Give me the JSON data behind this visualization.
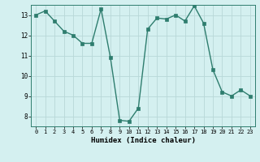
{
  "x": [
    0,
    1,
    2,
    3,
    4,
    5,
    6,
    7,
    8,
    9,
    10,
    11,
    12,
    13,
    14,
    15,
    16,
    17,
    18,
    19,
    20,
    21,
    22,
    23
  ],
  "y": [
    13.0,
    13.2,
    12.7,
    12.2,
    12.0,
    11.6,
    11.6,
    13.3,
    10.9,
    7.8,
    7.75,
    8.4,
    12.3,
    12.85,
    12.8,
    13.0,
    12.7,
    13.45,
    12.6,
    10.3,
    9.2,
    9.0,
    9.3,
    9.0
  ],
  "line_color": "#2e7d6e",
  "marker_color": "#2e7d6e",
  "bg_color": "#d4f0f0",
  "grid_color": "#b8d8d8",
  "xlabel": "Humidex (Indice chaleur)",
  "xlim": [
    -0.5,
    23.5
  ],
  "ylim": [
    7.5,
    13.5
  ],
  "yticks": [
    8,
    9,
    10,
    11,
    12,
    13
  ],
  "xticks": [
    0,
    1,
    2,
    3,
    4,
    5,
    6,
    7,
    8,
    9,
    10,
    11,
    12,
    13,
    14,
    15,
    16,
    17,
    18,
    19,
    20,
    21,
    22,
    23
  ],
  "xtick_labels": [
    "0",
    "1",
    "2",
    "3",
    "4",
    "5",
    "6",
    "7",
    "8",
    "9",
    "10",
    "11",
    "12",
    "13",
    "14",
    "15",
    "16",
    "17",
    "18",
    "19",
    "20",
    "21",
    "22",
    "23"
  ],
  "marker_size": 2.5,
  "line_width": 1.0
}
